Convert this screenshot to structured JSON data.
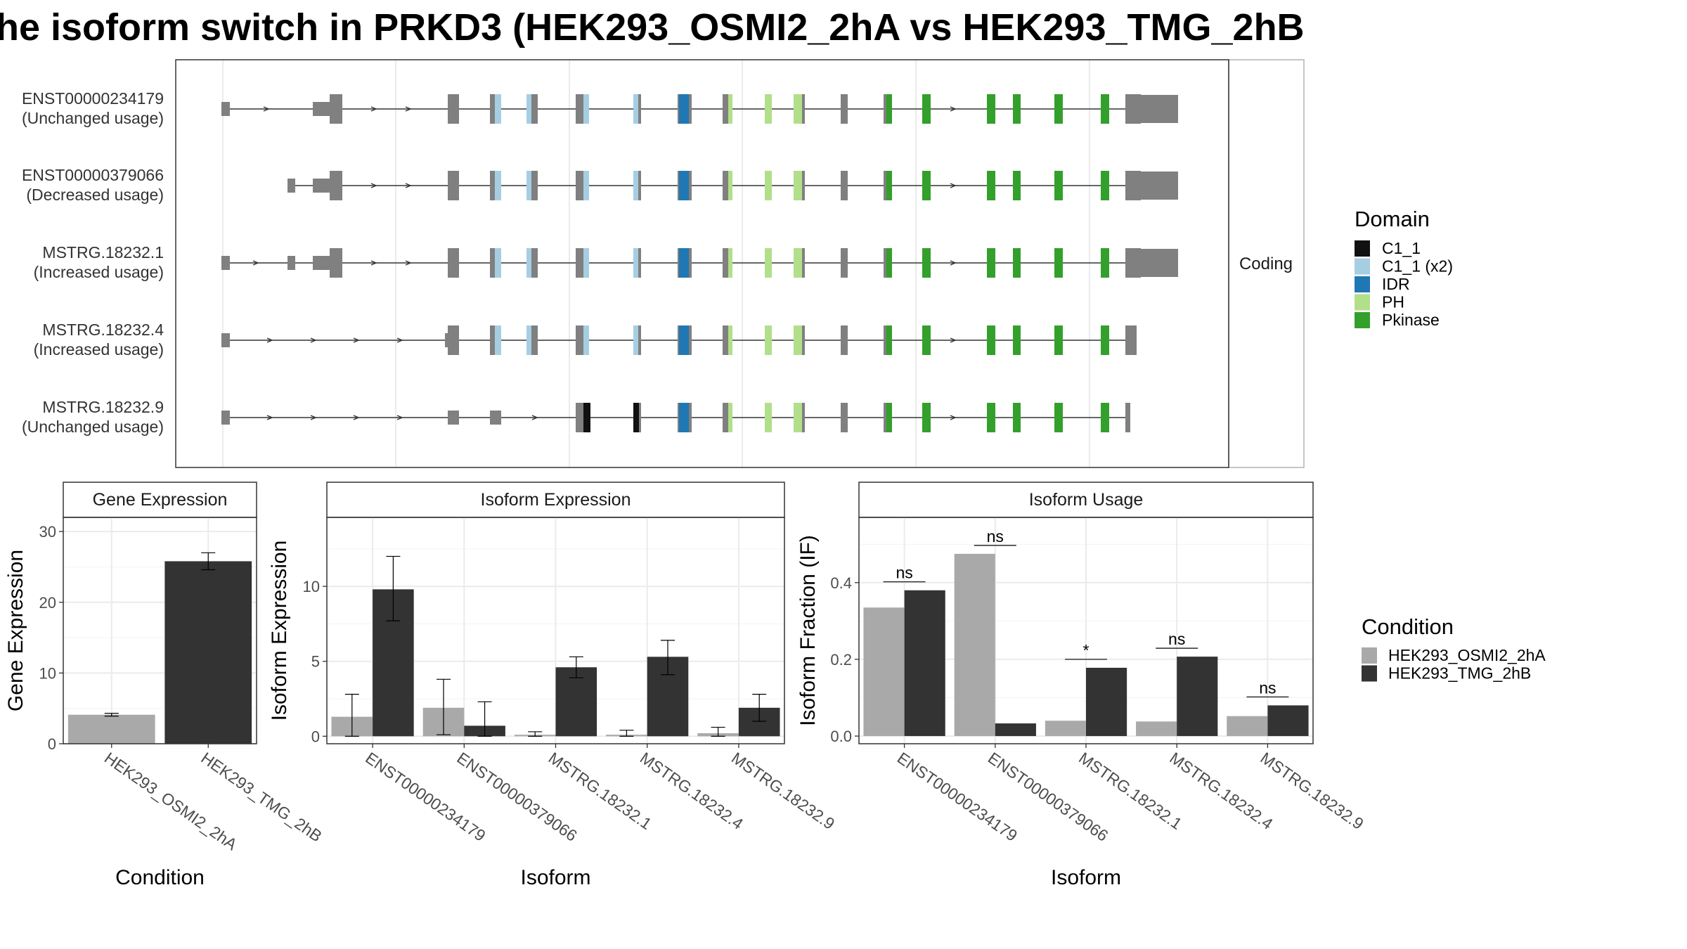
{
  "title": "he isoform switch in PRKD3 (HEK293_OSMI2_2hA vs HEK293_TMG_2hB",
  "colors": {
    "C1_1": "#111111",
    "C1_1 (x2)": "#a6cee3",
    "IDR": "#1f78b4",
    "PH": "#b2df8a",
    "Pkinase": "#33a02c",
    "exon": "#808080",
    "HEK293_OSMI2_2hA": "#a9a9a9",
    "HEK293_TMG_2hB": "#333333"
  },
  "chart_data": [
    {
      "type": "gene-structure",
      "facet_label": "Coding",
      "transcripts": [
        {
          "id": "ENST00000234179",
          "usage": "(Unchanged usage)"
        },
        {
          "id": "ENST00000379066",
          "usage": "(Decreased usage)"
        },
        {
          "id": "MSTRG.18232.1",
          "usage": "(Increased usage)"
        },
        {
          "id": "MSTRG.18232.4",
          "usage": "(Increased usage)"
        },
        {
          "id": "MSTRG.18232.9",
          "usage": "(Unchanged usage)"
        }
      ],
      "legend": {
        "title": "Domain",
        "items": [
          "C1_1",
          "C1_1 (x2)",
          "IDR",
          "PH",
          "Pkinase"
        ]
      }
    },
    {
      "type": "bar",
      "strip": "Gene Expression",
      "xlabel": "Condition",
      "ylabel": "Gene Expression",
      "categories": [
        "HEK293_OSMI2_2hA",
        "HEK293_TMG_2hB"
      ],
      "values": [
        4.1,
        25.8
      ],
      "errors": [
        [
          3.9,
          4.3
        ],
        [
          24.6,
          27.0
        ]
      ],
      "ylim": [
        0,
        32
      ],
      "yticks": [
        0,
        10,
        20,
        30
      ]
    },
    {
      "type": "bar",
      "strip": "Isoform Expression",
      "xlabel": "Isoform",
      "ylabel": "Isoform Expression",
      "categories": [
        "ENST00000234179",
        "ENST00000379066",
        "MSTRG.18232.1",
        "MSTRG.18232.4",
        "MSTRG.18232.9"
      ],
      "series": [
        {
          "name": "HEK293_OSMI2_2hA",
          "values": [
            1.3,
            1.9,
            0.1,
            0.1,
            0.2
          ],
          "errors": [
            [
              0.0,
              2.8
            ],
            [
              0.1,
              3.8
            ],
            [
              0.0,
              0.3
            ],
            [
              0.0,
              0.4
            ],
            [
              0.0,
              0.6
            ]
          ]
        },
        {
          "name": "HEK293_TMG_2hB",
          "values": [
            9.8,
            0.7,
            4.6,
            5.3,
            1.9
          ],
          "errors": [
            [
              7.7,
              12.0
            ],
            [
              0.0,
              2.3
            ],
            [
              3.9,
              5.3
            ],
            [
              4.1,
              6.4
            ],
            [
              1.0,
              2.8
            ]
          ]
        }
      ],
      "ylim": [
        -0.5,
        14.6
      ],
      "yticks": [
        0,
        5,
        10
      ]
    },
    {
      "type": "bar",
      "strip": "Isoform Usage",
      "xlabel": "Isoform",
      "ylabel": "Isoform Fraction (IF)",
      "categories": [
        "ENST00000234179",
        "ENST00000379066",
        "MSTRG.18232.1",
        "MSTRG.18232.4",
        "MSTRG.18232.9"
      ],
      "series": [
        {
          "name": "HEK293_OSMI2_2hA",
          "values": [
            0.335,
            0.475,
            0.04,
            0.038,
            0.052
          ]
        },
        {
          "name": "HEK293_TMG_2hB",
          "values": [
            0.38,
            0.033,
            0.178,
            0.207,
            0.08
          ]
        }
      ],
      "significance": [
        "ns",
        "ns",
        "*",
        "ns",
        "ns"
      ],
      "ylim": [
        -0.02,
        0.57
      ],
      "yticks": [
        0.0,
        0.2,
        0.4
      ],
      "ytick_labels": [
        "0.0",
        "0.2",
        "0.4"
      ],
      "legend": {
        "title": "Condition",
        "items": [
          "HEK293_OSMI2_2hA",
          "HEK293_TMG_2hB"
        ]
      }
    }
  ]
}
